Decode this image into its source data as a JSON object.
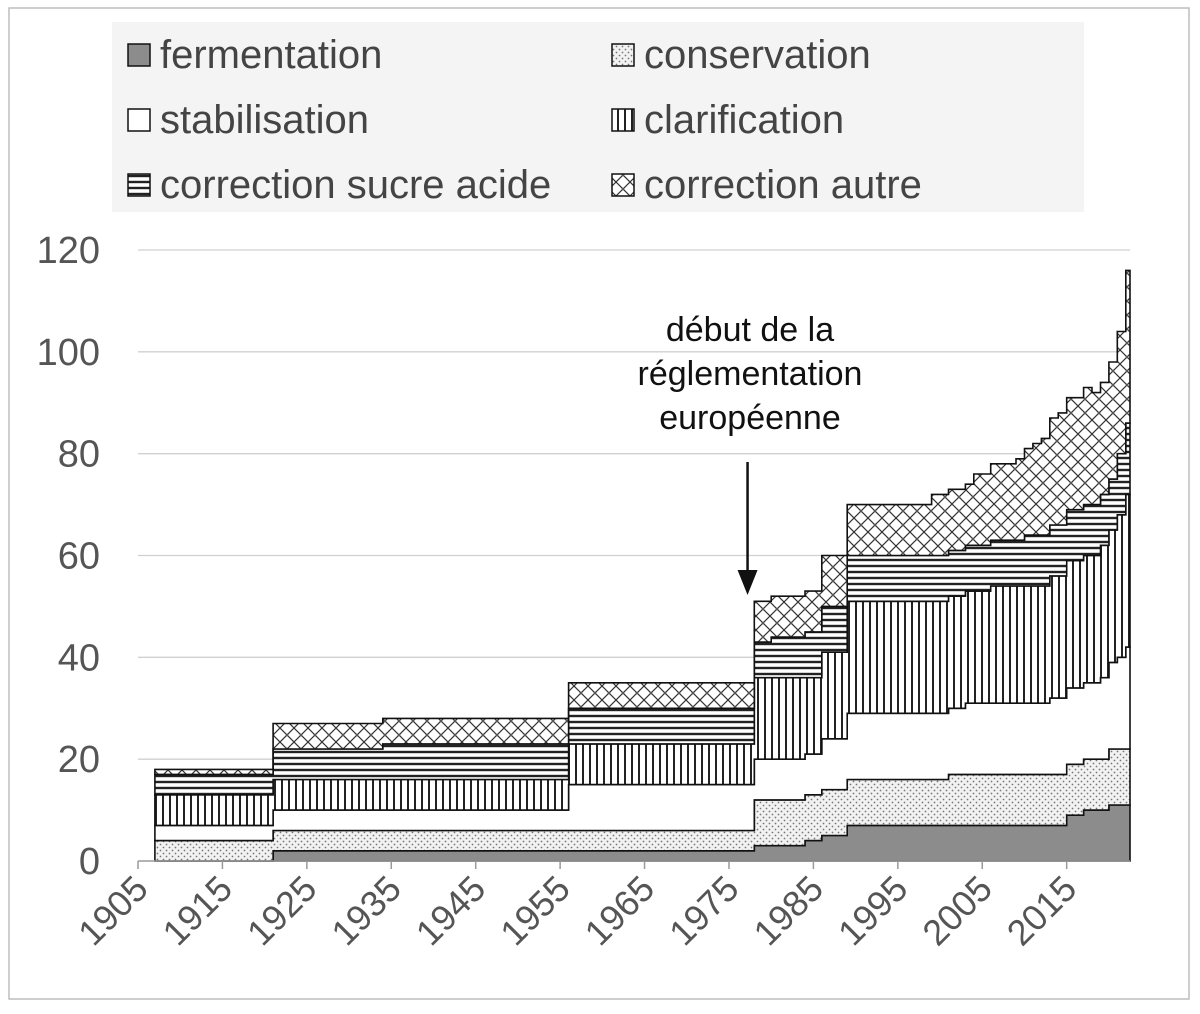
{
  "chart_data": {
    "type": "area",
    "stacked": true,
    "step": true,
    "ylim": [
      0,
      120
    ],
    "yticks": [
      0,
      20,
      40,
      60,
      80,
      100,
      120
    ],
    "xlim": [
      1905,
      2022.5
    ],
    "xticks": [
      1905,
      1915,
      1925,
      1935,
      1945,
      1955,
      1965,
      1975,
      1985,
      1995,
      2005,
      2015
    ],
    "grid": true,
    "legend_position": "top",
    "x": [
      1907,
      1908,
      1909,
      1910,
      1911,
      1912,
      1913,
      1914,
      1915,
      1916,
      1917,
      1918,
      1919,
      1920,
      1921,
      1922,
      1923,
      1924,
      1925,
      1926,
      1927,
      1928,
      1929,
      1930,
      1931,
      1932,
      1933,
      1934,
      1935,
      1936,
      1937,
      1938,
      1939,
      1940,
      1941,
      1942,
      1943,
      1944,
      1945,
      1946,
      1947,
      1948,
      1949,
      1950,
      1951,
      1952,
      1953,
      1954,
      1955,
      1956,
      1957,
      1958,
      1959,
      1960,
      1961,
      1962,
      1963,
      1964,
      1965,
      1966,
      1967,
      1968,
      1969,
      1970,
      1971,
      1972,
      1973,
      1974,
      1975,
      1976,
      1977,
      1978,
      1979,
      1980,
      1981,
      1982,
      1983,
      1984,
      1985,
      1986,
      1987,
      1988,
      1989,
      1990,
      1991,
      1992,
      1993,
      1994,
      1995,
      1996,
      1997,
      1998,
      1999,
      2000,
      2001,
      2002,
      2003,
      2004,
      2005,
      2006,
      2007,
      2008,
      2009,
      2010,
      2011,
      2012,
      2013,
      2014,
      2015,
      2016,
      2017,
      2018,
      2019,
      2020,
      2021,
      2022
    ],
    "series": [
      {
        "name": "fermentation",
        "pattern": "solid",
        "color": "#8c8c8c",
        "values": [
          0,
          0,
          0,
          0,
          0,
          0,
          0,
          0,
          0,
          0,
          0,
          0,
          0,
          0,
          2,
          2,
          2,
          2,
          2,
          2,
          2,
          2,
          2,
          2,
          2,
          2,
          2,
          2,
          2,
          2,
          2,
          2,
          2,
          2,
          2,
          2,
          2,
          2,
          2,
          2,
          2,
          2,
          2,
          2,
          2,
          2,
          2,
          2,
          2,
          2,
          2,
          2,
          2,
          2,
          2,
          2,
          2,
          2,
          2,
          2,
          2,
          2,
          2,
          2,
          2,
          2,
          2,
          2,
          2,
          2,
          2,
          3,
          3,
          3,
          3,
          3,
          3,
          4,
          4,
          5,
          5,
          5,
          7,
          7,
          7,
          7,
          7,
          7,
          7,
          7,
          7,
          7,
          7,
          7,
          7,
          7,
          7,
          7,
          7,
          7,
          7,
          7,
          7,
          7,
          7,
          7,
          7,
          7,
          9,
          9,
          10,
          10,
          10,
          11,
          11,
          11
        ]
      },
      {
        "name": "conservation",
        "pattern": "fine-dots",
        "color": "#eeeeee",
        "values": [
          4,
          4,
          4,
          4,
          4,
          4,
          4,
          4,
          4,
          4,
          4,
          4,
          4,
          4,
          4,
          4,
          4,
          4,
          4,
          4,
          4,
          4,
          4,
          4,
          4,
          4,
          4,
          4,
          4,
          4,
          4,
          4,
          4,
          4,
          4,
          4,
          4,
          4,
          4,
          4,
          4,
          4,
          4,
          4,
          4,
          4,
          4,
          4,
          4,
          4,
          4,
          4,
          4,
          4,
          4,
          4,
          4,
          4,
          4,
          4,
          4,
          4,
          4,
          4,
          4,
          4,
          4,
          4,
          4,
          4,
          4,
          9,
          9,
          9,
          9,
          9,
          9,
          9,
          9,
          9,
          9,
          9,
          9,
          9,
          9,
          9,
          9,
          9,
          9,
          9,
          9,
          9,
          9,
          9,
          10,
          10,
          10,
          10,
          10,
          10,
          10,
          10,
          10,
          10,
          10,
          10,
          10,
          10,
          10,
          10,
          10,
          10,
          10,
          11,
          11,
          11
        ]
      },
      {
        "name": "stabilisation",
        "pattern": "blank",
        "color": "#ffffff",
        "values": [
          3,
          3,
          3,
          3,
          3,
          3,
          3,
          3,
          3,
          3,
          3,
          3,
          3,
          3,
          4,
          4,
          4,
          4,
          4,
          4,
          4,
          4,
          4,
          4,
          4,
          4,
          4,
          4,
          4,
          4,
          4,
          4,
          4,
          4,
          4,
          4,
          4,
          4,
          4,
          4,
          4,
          4,
          4,
          4,
          4,
          4,
          4,
          4,
          4,
          9,
          9,
          9,
          9,
          9,
          9,
          9,
          9,
          9,
          9,
          9,
          9,
          9,
          9,
          9,
          9,
          9,
          9,
          9,
          9,
          9,
          9,
          8,
          8,
          8,
          8,
          8,
          8,
          8,
          8,
          10,
          10,
          10,
          13,
          13,
          13,
          13,
          13,
          13,
          13,
          13,
          13,
          13,
          13,
          13,
          13,
          13,
          14,
          14,
          14,
          14,
          14,
          14,
          14,
          14,
          14,
          14,
          15,
          15,
          15,
          15,
          15,
          15,
          16,
          17,
          18,
          20
        ]
      },
      {
        "name": "clarification",
        "pattern": "vertical-lines",
        "color": "#ffffff",
        "values": [
          6,
          6,
          6,
          6,
          6,
          6,
          6,
          6,
          6,
          6,
          6,
          6,
          6,
          6,
          6,
          6,
          6,
          6,
          6,
          6,
          6,
          6,
          6,
          6,
          6,
          6,
          6,
          6,
          6,
          6,
          6,
          6,
          6,
          6,
          6,
          6,
          6,
          6,
          6,
          6,
          6,
          6,
          6,
          6,
          6,
          6,
          6,
          6,
          6,
          8,
          8,
          8,
          8,
          8,
          8,
          8,
          8,
          8,
          8,
          8,
          8,
          8,
          8,
          8,
          8,
          8,
          8,
          8,
          8,
          8,
          8,
          16,
          16,
          16,
          16,
          16,
          16,
          15,
          15,
          17,
          17,
          17,
          22,
          22,
          22,
          22,
          22,
          22,
          22,
          22,
          22,
          22,
          22,
          22,
          22,
          22,
          22,
          22,
          22,
          23,
          23,
          23,
          23,
          23,
          23,
          23,
          24,
          24,
          25,
          25,
          25,
          25,
          26,
          26,
          28,
          30
        ]
      },
      {
        "name": "correction sucre acide",
        "pattern": "horizontal-lines",
        "color": "#ffffff",
        "values": [
          4,
          4,
          4,
          4,
          4,
          4,
          4,
          4,
          4,
          4,
          4,
          4,
          4,
          4,
          6,
          6,
          6,
          6,
          6,
          6,
          6,
          6,
          6,
          6,
          6,
          6,
          6,
          7,
          7,
          7,
          7,
          7,
          7,
          7,
          7,
          7,
          7,
          7,
          7,
          7,
          7,
          7,
          7,
          7,
          7,
          7,
          7,
          7,
          7,
          7,
          7,
          7,
          7,
          7,
          7,
          7,
          7,
          7,
          7,
          7,
          7,
          7,
          7,
          7,
          7,
          7,
          7,
          7,
          7,
          7,
          7,
          7,
          7,
          8,
          8,
          8,
          8,
          9,
          9,
          9,
          9,
          9,
          9,
          9,
          9,
          9,
          9,
          9,
          9,
          9,
          9,
          9,
          9,
          9,
          9,
          9,
          9,
          9,
          9,
          9,
          9,
          9,
          9,
          10,
          10,
          10,
          10,
          10,
          10,
          10,
          10,
          10,
          10,
          10,
          12,
          14
        ]
      },
      {
        "name": "correction autre",
        "pattern": "crosshatch",
        "color": "#ffffff",
        "values": [
          1,
          1,
          1,
          1,
          1,
          1,
          1,
          1,
          1,
          1,
          1,
          1,
          1,
          1,
          5,
          5,
          5,
          5,
          5,
          5,
          5,
          5,
          5,
          5,
          5,
          5,
          5,
          5,
          5,
          5,
          5,
          5,
          5,
          5,
          5,
          5,
          5,
          5,
          5,
          5,
          5,
          5,
          5,
          5,
          5,
          5,
          5,
          5,
          5,
          5,
          5,
          5,
          5,
          5,
          5,
          5,
          5,
          5,
          5,
          5,
          5,
          5,
          5,
          5,
          5,
          5,
          5,
          5,
          5,
          5,
          5,
          8,
          8,
          8,
          8,
          8,
          8,
          8,
          8,
          10,
          10,
          10,
          10,
          10,
          10,
          10,
          10,
          10,
          10,
          10,
          10,
          10,
          12,
          12,
          12,
          12,
          12,
          14,
          14,
          15,
          15,
          15,
          16,
          17,
          18,
          19,
          21,
          22,
          22,
          22,
          23,
          22,
          22,
          23,
          24,
          30
        ]
      }
    ],
    "annotation": {
      "lines": [
        "début de la",
        "réglementation",
        "européenne"
      ],
      "x": 1977,
      "y": 51
    }
  }
}
